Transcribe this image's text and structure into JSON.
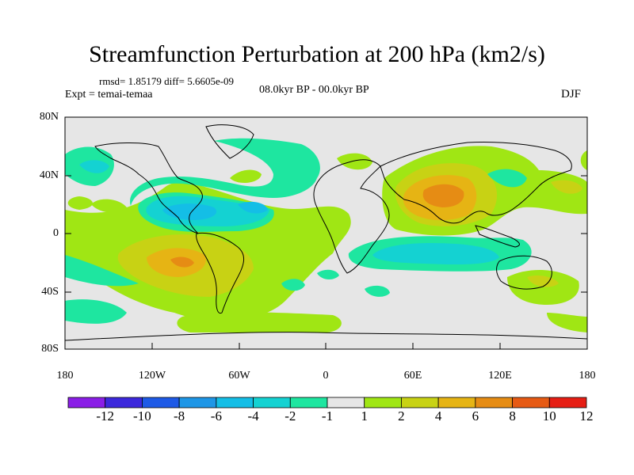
{
  "title": "Streamfunction Perturbation at 200 hPa (km2/s)",
  "stats": "rmsd= 1.85179 diff= 5.6605e-09",
  "experiment": "Expt = temai-temaa",
  "period": "08.0kyr BP - 00.0kyr BP",
  "season": "DJF",
  "lat_labels": [
    "80N",
    "40N",
    "0",
    "40S",
    "80S"
  ],
  "lon_labels": [
    "180",
    "120W",
    "60W",
    "0",
    "60E",
    "120E",
    "180"
  ],
  "colorbar": {
    "labels": [
      "-12",
      "-10",
      "-8",
      "-6",
      "-4",
      "-2",
      "-1",
      "1",
      "2",
      "4",
      "6",
      "8",
      "10",
      "12"
    ],
    "colors": [
      "#8a1ee6",
      "#3c28dc",
      "#1e5ae6",
      "#1e96e6",
      "#14bee6",
      "#14d2d2",
      "#1ee6a0",
      "#e6e6e6",
      "#a0e614",
      "#c8d214",
      "#e6b414",
      "#e68c14",
      "#e65a14",
      "#e61e14"
    ]
  }
}
